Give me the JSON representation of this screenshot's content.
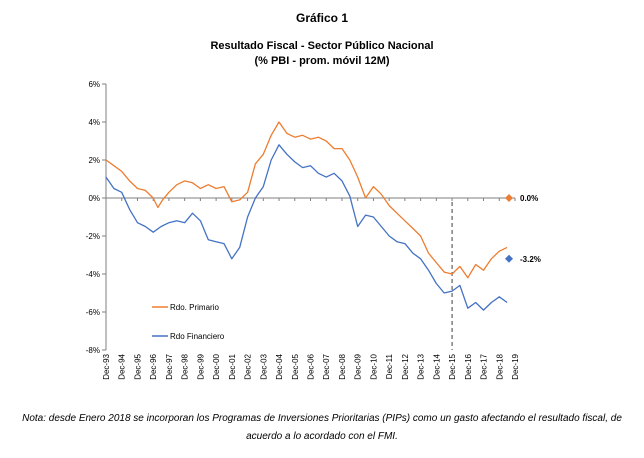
{
  "chart_data": {
    "type": "line",
    "figure_label": "Gráfico 1",
    "title": "Resultado Fiscal - Sector Público Nacional",
    "subtitle": "(% PBI - prom. móvil 12M)",
    "ylim": [
      -8,
      6
    ],
    "y_ticks": [
      6,
      4,
      2,
      0,
      -2,
      -4,
      -6,
      -8
    ],
    "y_tick_labels": [
      "6%",
      "4%",
      "2%",
      "0%",
      "-2%",
      "-4%",
      "-6%",
      "-8%"
    ],
    "x_tick_labels": [
      "Dec-93",
      "Dec-94",
      "Dec-95",
      "Dec-96",
      "Dec-97",
      "Dec-98",
      "Dec-99",
      "Dec-00",
      "Dec-01",
      "Dec-02",
      "Dec-03",
      "Dec-04",
      "Dec-05",
      "Dec-06",
      "Dec-07",
      "Dec-08",
      "Dec-09",
      "Dec-10",
      "Dec-11",
      "Dec-12",
      "Dec-13",
      "Dec-14",
      "Dec-15",
      "Dec-16",
      "Dec-17",
      "Dec-18",
      "Dec-19"
    ],
    "x_start_year": 1993,
    "vertical_marker_year": 2015,
    "series": [
      {
        "name": "Rdo. Primario",
        "color": "#ED7D31",
        "points": [
          [
            1993,
            2.0
          ],
          [
            1993.5,
            1.7
          ],
          [
            1994,
            1.4
          ],
          [
            1994.5,
            0.9
          ],
          [
            1995,
            0.5
          ],
          [
            1995.5,
            0.4
          ],
          [
            1996,
            0.0
          ],
          [
            1996.3,
            -0.5
          ],
          [
            1996.6,
            -0.1
          ],
          [
            1997,
            0.3
          ],
          [
            1997.5,
            0.7
          ],
          [
            1998,
            0.9
          ],
          [
            1998.5,
            0.8
          ],
          [
            1999,
            0.5
          ],
          [
            1999.5,
            0.7
          ],
          [
            2000,
            0.5
          ],
          [
            2000.5,
            0.6
          ],
          [
            2001,
            -0.2
          ],
          [
            2001.5,
            -0.1
          ],
          [
            2002,
            0.3
          ],
          [
            2002.5,
            1.8
          ],
          [
            2003,
            2.3
          ],
          [
            2003.5,
            3.3
          ],
          [
            2004,
            4.0
          ],
          [
            2004.5,
            3.4
          ],
          [
            2005,
            3.2
          ],
          [
            2005.5,
            3.3
          ],
          [
            2006,
            3.1
          ],
          [
            2006.5,
            3.2
          ],
          [
            2007,
            3.0
          ],
          [
            2007.5,
            2.6
          ],
          [
            2008,
            2.6
          ],
          [
            2008.5,
            2.0
          ],
          [
            2009,
            1.1
          ],
          [
            2009.5,
            0.0
          ],
          [
            2010,
            0.6
          ],
          [
            2010.5,
            0.2
          ],
          [
            2011,
            -0.4
          ],
          [
            2011.5,
            -0.8
          ],
          [
            2012,
            -1.2
          ],
          [
            2012.5,
            -1.6
          ],
          [
            2013,
            -2.0
          ],
          [
            2013.5,
            -2.9
          ],
          [
            2014,
            -3.4
          ],
          [
            2014.5,
            -3.9
          ],
          [
            2015,
            -4.0
          ],
          [
            2015.5,
            -3.6
          ],
          [
            2016,
            -4.2
          ],
          [
            2016.5,
            -3.5
          ],
          [
            2017,
            -3.8
          ],
          [
            2017.5,
            -3.2
          ],
          [
            2018,
            -2.8
          ],
          [
            2018.5,
            -2.6
          ]
        ]
      },
      {
        "name": "Rdo Financiero",
        "color": "#4472C4",
        "points": [
          [
            1993,
            1.1
          ],
          [
            1993.5,
            0.5
          ],
          [
            1994,
            0.3
          ],
          [
            1994.5,
            -0.6
          ],
          [
            1995,
            -1.3
          ],
          [
            1995.5,
            -1.5
          ],
          [
            1996,
            -1.8
          ],
          [
            1996.5,
            -1.5
          ],
          [
            1997,
            -1.3
          ],
          [
            1997.5,
            -1.2
          ],
          [
            1998,
            -1.3
          ],
          [
            1998.5,
            -0.8
          ],
          [
            1999,
            -1.2
          ],
          [
            1999.5,
            -2.2
          ],
          [
            2000,
            -2.3
          ],
          [
            2000.5,
            -2.4
          ],
          [
            2001,
            -3.2
          ],
          [
            2001.5,
            -2.6
          ],
          [
            2002,
            -1.0
          ],
          [
            2002.5,
            0.0
          ],
          [
            2003,
            0.6
          ],
          [
            2003.5,
            2.0
          ],
          [
            2004,
            2.8
          ],
          [
            2004.5,
            2.3
          ],
          [
            2005,
            1.9
          ],
          [
            2005.5,
            1.6
          ],
          [
            2006,
            1.7
          ],
          [
            2006.5,
            1.3
          ],
          [
            2007,
            1.1
          ],
          [
            2007.5,
            1.3
          ],
          [
            2008,
            0.9
          ],
          [
            2008.5,
            0.1
          ],
          [
            2009,
            -1.5
          ],
          [
            2009.5,
            -0.9
          ],
          [
            2010,
            -1.0
          ],
          [
            2010.5,
            -1.5
          ],
          [
            2011,
            -2.0
          ],
          [
            2011.5,
            -2.3
          ],
          [
            2012,
            -2.4
          ],
          [
            2012.5,
            -2.9
          ],
          [
            2013,
            -3.2
          ],
          [
            2013.5,
            -3.8
          ],
          [
            2014,
            -4.5
          ],
          [
            2014.5,
            -5.0
          ],
          [
            2015,
            -4.9
          ],
          [
            2015.5,
            -4.6
          ],
          [
            2016,
            -5.8
          ],
          [
            2016.5,
            -5.5
          ],
          [
            2017,
            -5.9
          ],
          [
            2017.5,
            -5.5
          ],
          [
            2018,
            -5.2
          ],
          [
            2018.5,
            -5.5
          ]
        ]
      }
    ],
    "markers": [
      {
        "label": "0.0%",
        "value": 0.0,
        "color": "#ED7D31",
        "label_color": "#C00000"
      },
      {
        "label": "-3.2%",
        "value": -3.2,
        "color": "#4472C4",
        "label_color": "#4472C4"
      }
    ],
    "legend": [
      "Rdo. Primario",
      "Rdo Financiero"
    ],
    "legend_position": "bottom-left"
  },
  "note": "Nota: desde Enero 2018 se incorporan los Programas de Inversiones Prioritarias (PIPs) como un gasto afectando el resultado fiscal, de acuerdo a lo acordado con el FMI."
}
